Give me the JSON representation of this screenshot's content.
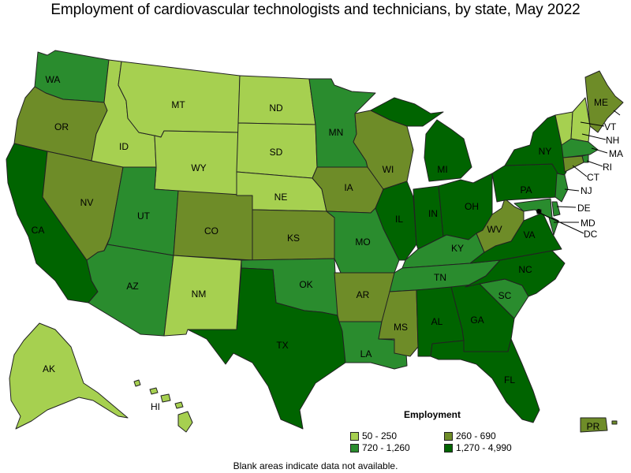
{
  "title": "Employment of cardiovascular technologists and technicians, by state, May 2022",
  "colors": {
    "c1": "#a6d050",
    "c2": "#6e8c28",
    "c3": "#2a8c2e",
    "c4": "#006400"
  },
  "legend": {
    "title": "Employment",
    "items": [
      {
        "label": "50 - 250",
        "color": "#a6d050"
      },
      {
        "label": "260 - 690",
        "color": "#6e8c28"
      },
      {
        "label": "720 - 1,260",
        "color": "#2a8c2e"
      },
      {
        "label": "1,270 - 4,990",
        "color": "#006400"
      }
    ]
  },
  "footnote": "Blank areas indicate data not available.",
  "states": {
    "WA": "WA",
    "OR": "OR",
    "CA": "CA",
    "NV": "NV",
    "ID": "ID",
    "MT": "MT",
    "WY": "WY",
    "UT": "UT",
    "AZ": "AZ",
    "CO": "CO",
    "NM": "NM",
    "ND": "ND",
    "SD": "SD",
    "NE": "NE",
    "KS": "KS",
    "OK": "OK",
    "TX": "TX",
    "MN": "MN",
    "IA": "IA",
    "MO": "MO",
    "AR": "AR",
    "LA": "LA",
    "WI": "WI",
    "IL": "IL",
    "MI": "MI",
    "IN": "IN",
    "OH": "OH",
    "KY": "KY",
    "TN": "TN",
    "MS": "MS",
    "AL": "AL",
    "GA": "GA",
    "FL": "FL",
    "SC": "SC",
    "NC": "NC",
    "VA": "VA",
    "WV": "WV",
    "PA": "PA",
    "NY": "NY",
    "ME": "ME",
    "VT": "VT",
    "NH": "NH",
    "MA": "MA",
    "RI": "RI",
    "CT": "CT",
    "NJ": "NJ",
    "DE": "DE",
    "MD": "MD",
    "DC": "DC",
    "AK": "AK",
    "HI": "HI",
    "PR": "PR"
  }
}
